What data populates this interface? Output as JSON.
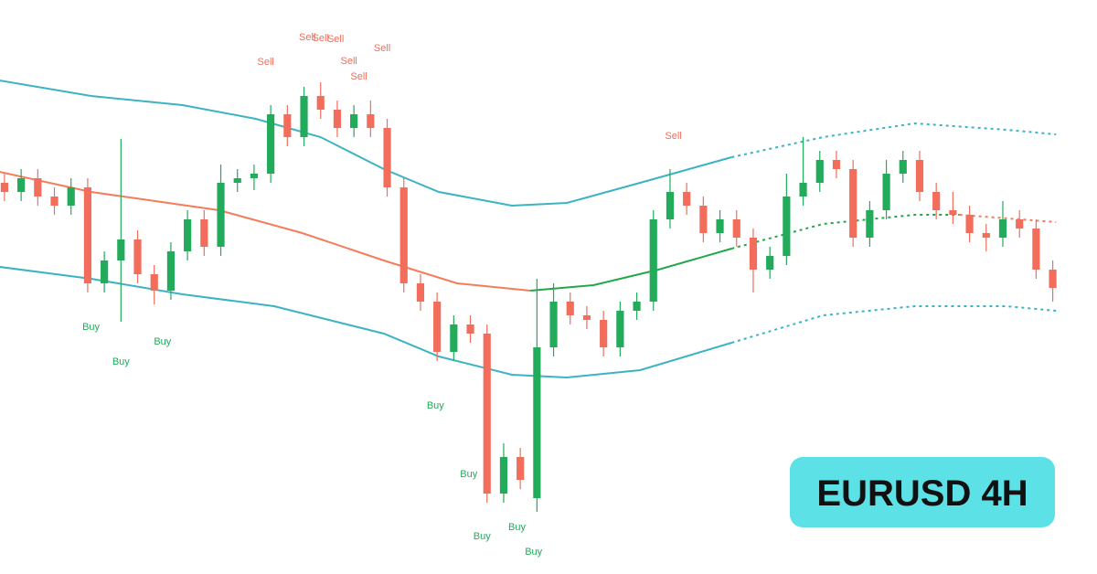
{
  "chart_data": {
    "type": "candlestick",
    "xlim": [
      -0.27,
      65.66
    ],
    "ylim": [
      0,
      628
    ],
    "up_color": "#22ab5b",
    "down_color": "#f26d5b",
    "x": [
      0,
      1,
      2,
      3,
      4,
      5,
      6,
      7,
      8,
      9,
      10,
      11,
      12,
      13,
      14,
      15,
      16,
      17,
      18,
      19,
      20,
      21,
      22,
      23,
      24,
      25,
      26,
      27,
      28,
      29,
      30,
      31,
      32,
      33,
      34,
      35,
      36,
      37,
      38,
      39,
      40,
      41,
      42,
      43,
      44,
      45,
      46,
      47,
      48,
      49,
      50,
      51,
      52,
      53,
      54,
      55,
      56,
      57,
      58,
      59,
      60,
      61,
      62,
      63
    ],
    "open": [
      428,
      418,
      433,
      413,
      403,
      423,
      318,
      343,
      366,
      328,
      310,
      353,
      388,
      358,
      428,
      433,
      438,
      503,
      478,
      523,
      508,
      488,
      503,
      488,
      423,
      318,
      298,
      243,
      273,
      263,
      88,
      128,
      83,
      248,
      298,
      283,
      278,
      248,
      288,
      298,
      388,
      418,
      403,
      373,
      388,
      368,
      333,
      348,
      413,
      428,
      453,
      443,
      368,
      398,
      438,
      453,
      418,
      398,
      393,
      373,
      368,
      388,
      378,
      333
    ],
    "high": [
      438,
      443,
      443,
      423,
      433,
      433,
      353,
      476,
      376,
      338,
      363,
      398,
      398,
      448,
      443,
      448,
      513,
      513,
      533,
      538,
      518,
      513,
      518,
      498,
      433,
      328,
      308,
      283,
      283,
      273,
      143,
      138,
      323,
      318,
      308,
      293,
      288,
      298,
      308,
      398,
      443,
      428,
      413,
      398,
      398,
      378,
      358,
      438,
      478,
      463,
      463,
      453,
      408,
      453,
      463,
      463,
      428,
      418,
      403,
      383,
      408,
      398,
      388,
      343
    ],
    "low": [
      408,
      408,
      403,
      393,
      393,
      308,
      308,
      276,
      318,
      295,
      300,
      343,
      348,
      348,
      418,
      420,
      428,
      468,
      468,
      498,
      478,
      478,
      478,
      413,
      308,
      288,
      233,
      233,
      253,
      78,
      78,
      93,
      68,
      238,
      273,
      268,
      238,
      238,
      278,
      288,
      378,
      393,
      363,
      363,
      358,
      308,
      323,
      338,
      403,
      418,
      433,
      358,
      358,
      388,
      428,
      408,
      388,
      383,
      363,
      353,
      358,
      368,
      323,
      298
    ],
    "close": [
      418,
      433,
      413,
      403,
      423,
      318,
      343,
      366,
      328,
      310,
      353,
      388,
      358,
      428,
      433,
      438,
      503,
      478,
      523,
      508,
      488,
      503,
      488,
      423,
      318,
      298,
      243,
      273,
      263,
      88,
      128,
      103,
      248,
      298,
      283,
      278,
      248,
      288,
      298,
      388,
      418,
      403,
      373,
      388,
      368,
      333,
      348,
      413,
      428,
      453,
      443,
      368,
      398,
      438,
      453,
      418,
      398,
      393,
      373,
      368,
      388,
      378,
      333,
      313
    ],
    "lines": [
      {
        "color": "#3bb3c3",
        "dashed": false,
        "x": [
          -0.3,
          5.2,
          10.7,
          15.1,
          19,
          22.8,
          26.1,
          30.5,
          33.8,
          38.2,
          43.7
        ],
        "values": [
          540,
          523,
          513,
          498,
          478,
          443,
          418,
          403,
          406,
          428,
          456
        ]
      },
      {
        "color": "#3bb3c3",
        "dashed": true,
        "x": [
          43.7,
          49.2,
          54.7,
          60.2,
          63.2
        ],
        "values": [
          456,
          478,
          493,
          486,
          481
        ]
      },
      {
        "color": "#3bb3c3",
        "dashed": false,
        "x": [
          -0.3,
          5.2,
          10.7,
          16.2,
          22.8,
          26.1,
          30.5,
          33.8,
          38.2,
          43.7
        ],
        "values": [
          336,
          323,
          306,
          293,
          263,
          238,
          218,
          215,
          223,
          253
        ]
      },
      {
        "color": "#3bb3c3",
        "dashed": true,
        "x": [
          43.7,
          49.2,
          54.7,
          60.2,
          63.2
        ],
        "values": [
          253,
          283,
          293,
          293,
          288
        ]
      },
      {
        "color": "#f47c5a",
        "dashed": false,
        "x": [
          -0.3,
          5.2,
          12.9,
          17.9,
          22.8,
          27.2,
          31.6
        ],
        "values": [
          440,
          418,
          398,
          373,
          343,
          318,
          310
        ]
      },
      {
        "color": "#22a84a",
        "dashed": false,
        "x": [
          31.6,
          35.4,
          39.3,
          43.7
        ],
        "values": [
          310,
          316,
          333,
          356
        ]
      },
      {
        "color": "#22a84a",
        "dashed": true,
        "x": [
          43.7,
          49.2,
          54.7,
          57.4
        ],
        "values": [
          356,
          383,
          393,
          393
        ]
      },
      {
        "color": "#f47c5a",
        "dashed": true,
        "x": [
          57.4,
          63.2
        ],
        "values": [
          393,
          385
        ]
      }
    ],
    "annotations": [
      {
        "label": "Buy",
        "x": 5.2,
        "y": 270
      },
      {
        "label": "Buy",
        "x": 7.0,
        "y": 232
      },
      {
        "label": "Buy",
        "x": 9.5,
        "y": 254
      },
      {
        "label": "Buy",
        "x": 25.9,
        "y": 184
      },
      {
        "label": "Buy",
        "x": 27.9,
        "y": 109
      },
      {
        "label": "Buy",
        "x": 28.7,
        "y": 41
      },
      {
        "label": "Buy",
        "x": 30.8,
        "y": 51
      },
      {
        "label": "Buy",
        "x": 31.8,
        "y": 24
      },
      {
        "label": "Sell",
        "x": 15.7,
        "y": 560
      },
      {
        "label": "Sell",
        "x": 18.2,
        "y": 587
      },
      {
        "label": "Sell",
        "x": 19.0,
        "y": 586
      },
      {
        "label": "Sell",
        "x": 19.9,
        "y": 585
      },
      {
        "label": "Sell",
        "x": 20.7,
        "y": 561
      },
      {
        "label": "Sell",
        "x": 21.3,
        "y": 544
      },
      {
        "label": "Sell",
        "x": 22.7,
        "y": 575
      },
      {
        "label": "Sell",
        "x": 40.2,
        "y": 479
      }
    ],
    "badge": "EURUSD 4H"
  }
}
